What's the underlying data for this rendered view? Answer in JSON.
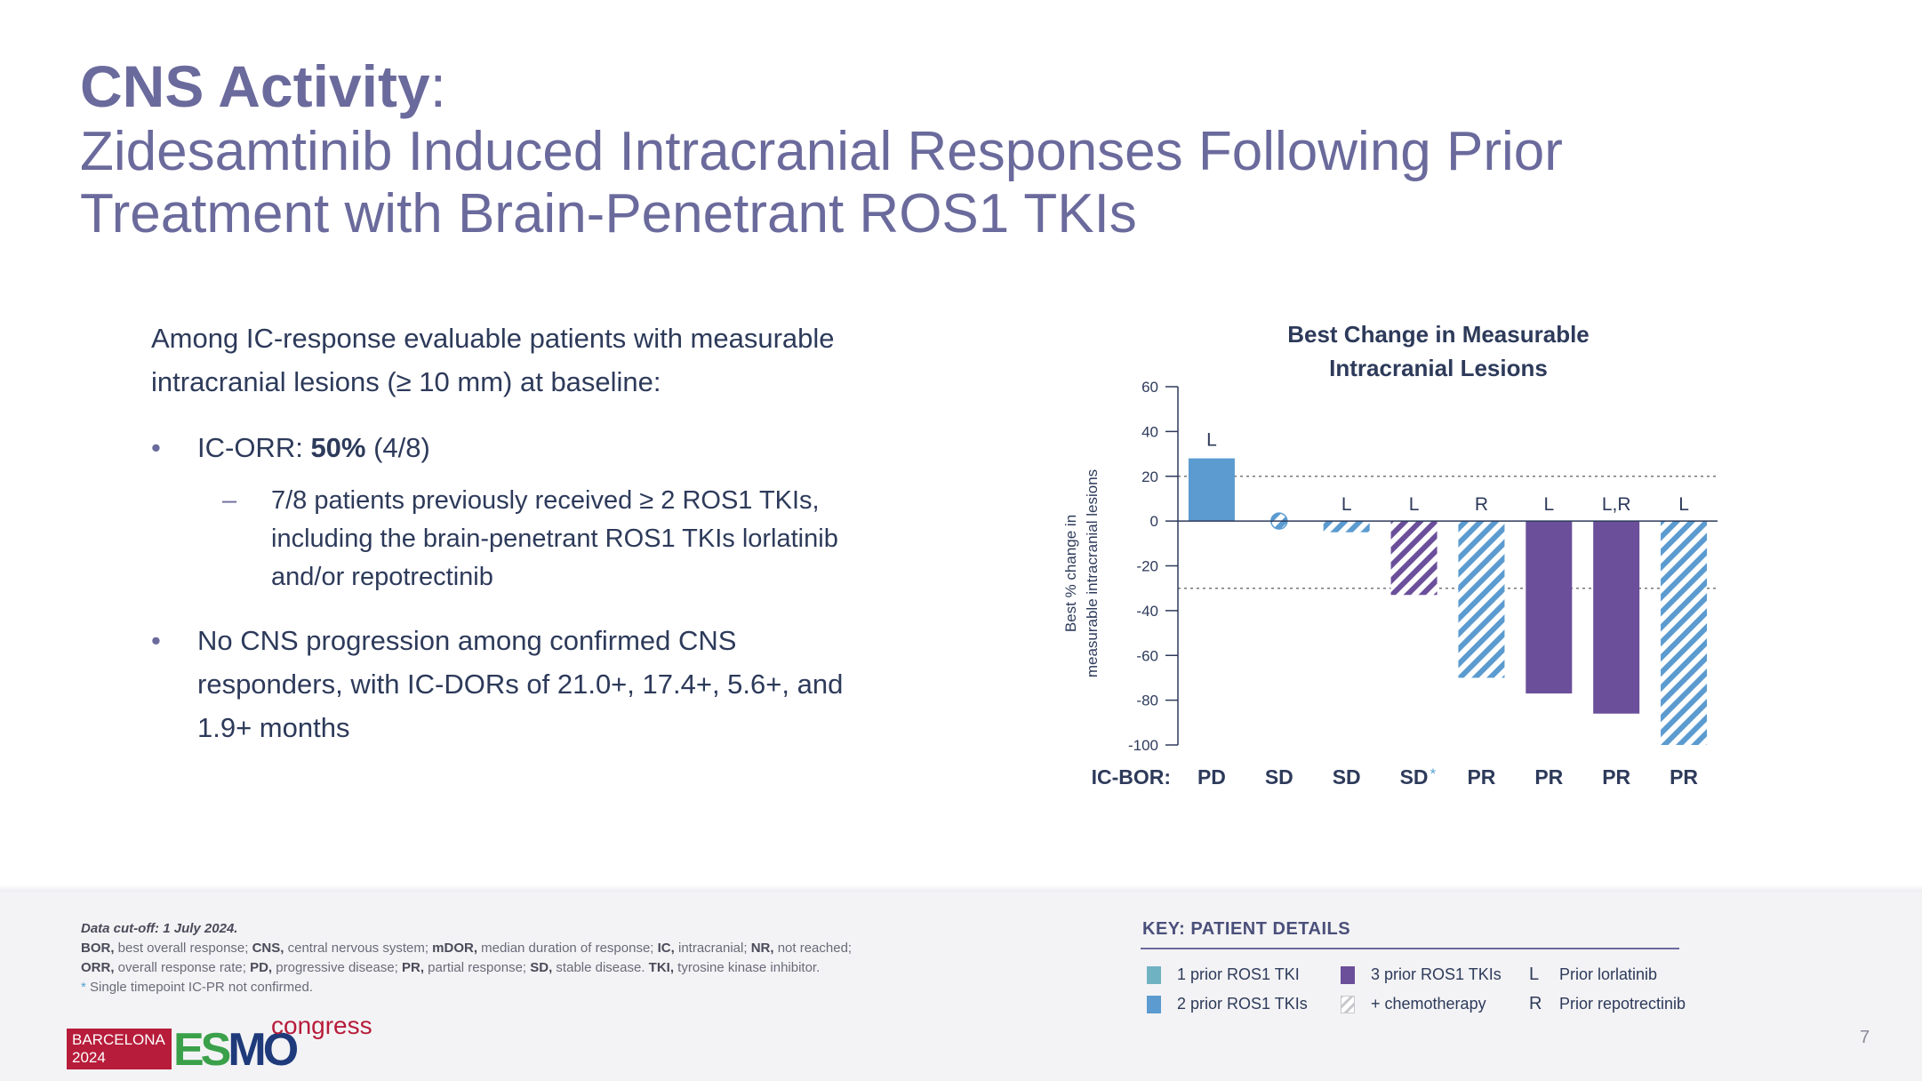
{
  "slide": {
    "title_bold": "CNS Activity",
    "title_colon": ":",
    "subtitle_line1": "Zidesamtinib Induced Intracranial Responses Following Prior",
    "subtitle_line2": "Treatment with Brain-Penetrant ROS1 TKIs",
    "page_number": "7"
  },
  "body": {
    "intro_line1": "Among IC-response evaluable patients with measurable",
    "intro_line2": "intracranial lesions (≥ 10 mm) at baseline:",
    "bullet_symbol": "•",
    "dash_symbol": "–",
    "bullet1_prefix": "IC-ORR: ",
    "bullet1_bold": "50%",
    "bullet1_suffix": " (4/8)",
    "sub1_line1": "7/8 patients previously received ≥ 2 ROS1 TKIs,",
    "sub1_line2": "including the brain-penetrant ROS1 TKIs lorlatinib",
    "sub1_line3": "and/or repotrectinib",
    "bullet2_line1": "No CNS progression among confirmed CNS",
    "bullet2_line2": "responders, with IC-DORs of 21.0+, 17.4+, 5.6+, and",
    "bullet2_line3": "1.9+ months"
  },
  "chart_data": {
    "type": "bar",
    "title_line1": "Best Change in Measurable",
    "title_line2": "Intracranial Lesions",
    "ylabel_line1": "Best % change in",
    "ylabel_line2": "measurable intracranial lesions",
    "ylim": [
      -100,
      60
    ],
    "yticks": [
      "60",
      "40",
      "20",
      "0",
      "-20",
      "-40",
      "-60",
      "-80",
      "-100"
    ],
    "reference_lines": [
      20,
      -30
    ],
    "category_axis_label": "IC-BOR:",
    "bars": [
      {
        "value": 28,
        "ic_bor": "PD",
        "prior": "L",
        "group": "2 prior ROS1 TKIs",
        "chemo": false
      },
      {
        "value": 0,
        "ic_bor": "SD",
        "prior": "",
        "group": "2 prior ROS1 TKIs",
        "chemo": true
      },
      {
        "value": -5,
        "ic_bor": "SD",
        "prior": "L",
        "group": "2 prior ROS1 TKIs",
        "chemo": true
      },
      {
        "value": -33,
        "ic_bor": "SD",
        "prior": "L",
        "group": "3 prior ROS1 TKIs",
        "chemo": true,
        "unconfirmed_mark": "*"
      },
      {
        "value": -70,
        "ic_bor": "PR",
        "prior": "R",
        "group": "2 prior ROS1 TKIs",
        "chemo": true
      },
      {
        "value": -77,
        "ic_bor": "PR",
        "prior": "L",
        "group": "3 prior ROS1 TKIs",
        "chemo": false
      },
      {
        "value": -86,
        "ic_bor": "PR",
        "prior": "L,R",
        "group": "3 prior ROS1 TKIs",
        "chemo": false
      },
      {
        "value": -100,
        "ic_bor": "PR",
        "prior": "L",
        "group": "2 prior ROS1 TKIs",
        "chemo": true
      }
    ],
    "colors": {
      "one_prior": "#6fb3c2",
      "two_prior": "#5b9bd0",
      "three_prior": "#6b4f9a",
      "hatch_two": "#5b9bd0",
      "hatch_three": "#6b4f9a",
      "axis": "#2d3a5a",
      "refline": "#777777",
      "star": "#5aa3d6"
    }
  },
  "footnotes": {
    "cutoff": "Data cut-off: 1 July 2024.",
    "line1_parts": [
      {
        "bold": "BOR,",
        "text": " best overall response; "
      },
      {
        "bold": "CNS,",
        "text": " central nervous system; "
      },
      {
        "bold": "mDOR,",
        "text": " median duration of response; "
      },
      {
        "bold": "IC,",
        "text": " intracranial; "
      },
      {
        "bold": "NR,",
        "text": " not reached;"
      }
    ],
    "line2_parts": [
      {
        "bold": "ORR,",
        "text": " overall response rate; "
      },
      {
        "bold": "PD,",
        "text": " progressive disease; "
      },
      {
        "bold": "PR,",
        "text": " partial response; "
      },
      {
        "bold": "SD,",
        "text": " stable disease. "
      },
      {
        "bold": "TKI,",
        "text": " tyrosine kinase inhibitor."
      }
    ],
    "star": "*",
    "star_note": " Single timepoint IC-PR not confirmed."
  },
  "key": {
    "title": "KEY: PATIENT DETAILS",
    "one_prior": "1 prior ROS1 TKI",
    "two_prior": "2 prior ROS1 TKIs",
    "three_prior": "3 prior ROS1 TKIs",
    "chemo": "+ chemotherapy",
    "l_letter": "L",
    "l_label": "Prior lorlatinib",
    "r_letter": "R",
    "r_label": "Prior repotrectinib"
  },
  "logo": {
    "city": "BARCELONA",
    "year": "2024",
    "es": "ES",
    "mo": "MO",
    "congress": "congress",
    "colors": {
      "red": "#b71c3a",
      "green": "#3aa04a",
      "navy": "#1f3a7a"
    }
  }
}
